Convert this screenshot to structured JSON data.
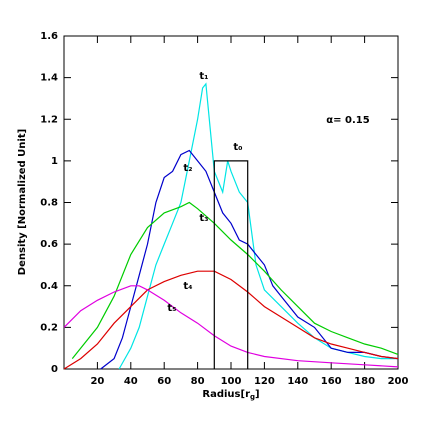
{
  "chart_data": {
    "type": "line",
    "x_label": [
      "Radius[r",
      "g",
      "]"
    ],
    "y_label": "Density [Normalized Unit]",
    "annotation": "α= 0.15",
    "xlim": [
      0,
      200
    ],
    "ylim": [
      0,
      1.6
    ],
    "xticks": [
      20,
      40,
      60,
      80,
      100,
      120,
      140,
      160,
      180,
      200
    ],
    "yticks": [
      0,
      0.2,
      0.4,
      0.6,
      0.8,
      1,
      1.2,
      1.4,
      1.6
    ],
    "series": [
      {
        "name": "t₁",
        "color": "#00e5e5",
        "x": [
          33,
          40,
          45,
          50,
          55,
          60,
          65,
          70,
          75,
          80,
          83,
          85,
          87,
          90,
          95,
          98,
          100,
          105,
          110,
          115,
          120,
          130,
          140,
          150,
          160,
          170,
          180,
          190,
          200
        ],
        "values": [
          0,
          0.1,
          0.2,
          0.35,
          0.5,
          0.6,
          0.7,
          0.8,
          1.0,
          1.2,
          1.35,
          1.37,
          1.2,
          0.95,
          0.85,
          1.0,
          0.95,
          0.85,
          0.8,
          0.5,
          0.38,
          0.3,
          0.22,
          0.15,
          0.1,
          0.08,
          0.06,
          0.05,
          0.05
        ]
      },
      {
        "name": "t₂",
        "color": "#0000cc",
        "x": [
          22,
          30,
          35,
          40,
          45,
          50,
          55,
          60,
          65,
          70,
          75,
          80,
          85,
          90,
          95,
          100,
          105,
          110,
          115,
          120,
          125,
          130,
          140,
          150,
          160,
          170,
          180,
          190,
          200
        ],
        "values": [
          0,
          0.05,
          0.15,
          0.3,
          0.45,
          0.6,
          0.8,
          0.92,
          0.95,
          1.03,
          1.05,
          1.0,
          0.95,
          0.85,
          0.75,
          0.7,
          0.62,
          0.6,
          0.55,
          0.5,
          0.4,
          0.35,
          0.25,
          0.2,
          0.1,
          0.08,
          0.08,
          0.06,
          0.05
        ]
      },
      {
        "name": "t₃",
        "color": "#00cc00",
        "x": [
          5,
          20,
          30,
          40,
          50,
          60,
          70,
          75,
          80,
          90,
          100,
          110,
          120,
          130,
          140,
          150,
          160,
          170,
          180,
          190,
          200
        ],
        "values": [
          0.05,
          0.2,
          0.35,
          0.55,
          0.68,
          0.75,
          0.78,
          0.8,
          0.77,
          0.7,
          0.62,
          0.55,
          0.47,
          0.38,
          0.3,
          0.22,
          0.18,
          0.15,
          0.12,
          0.1,
          0.07
        ]
      },
      {
        "name": "t₄",
        "color": "#dd0000",
        "x": [
          0,
          10,
          20,
          30,
          40,
          50,
          60,
          70,
          80,
          90,
          100,
          110,
          120,
          130,
          140,
          150,
          160,
          170,
          180,
          190,
          200
        ],
        "values": [
          0,
          0.05,
          0.12,
          0.22,
          0.3,
          0.38,
          0.42,
          0.45,
          0.47,
          0.47,
          0.43,
          0.37,
          0.3,
          0.25,
          0.2,
          0.15,
          0.12,
          0.1,
          0.08,
          0.06,
          0.05
        ]
      },
      {
        "name": "t₅",
        "color": "#e000e0",
        "x": [
          0,
          10,
          20,
          30,
          40,
          45,
          50,
          60,
          70,
          80,
          90,
          100,
          110,
          120,
          140,
          160,
          180,
          200
        ],
        "values": [
          0.2,
          0.28,
          0.33,
          0.37,
          0.4,
          0.4,
          0.38,
          0.33,
          0.27,
          0.22,
          0.16,
          0.11,
          0.08,
          0.06,
          0.04,
          0.03,
          0.02,
          0.01
        ]
      },
      {
        "name": "t₀",
        "color": "#000000",
        "x": [
          90,
          90,
          110,
          110
        ],
        "values": [
          0,
          1,
          1,
          0
        ]
      }
    ]
  }
}
